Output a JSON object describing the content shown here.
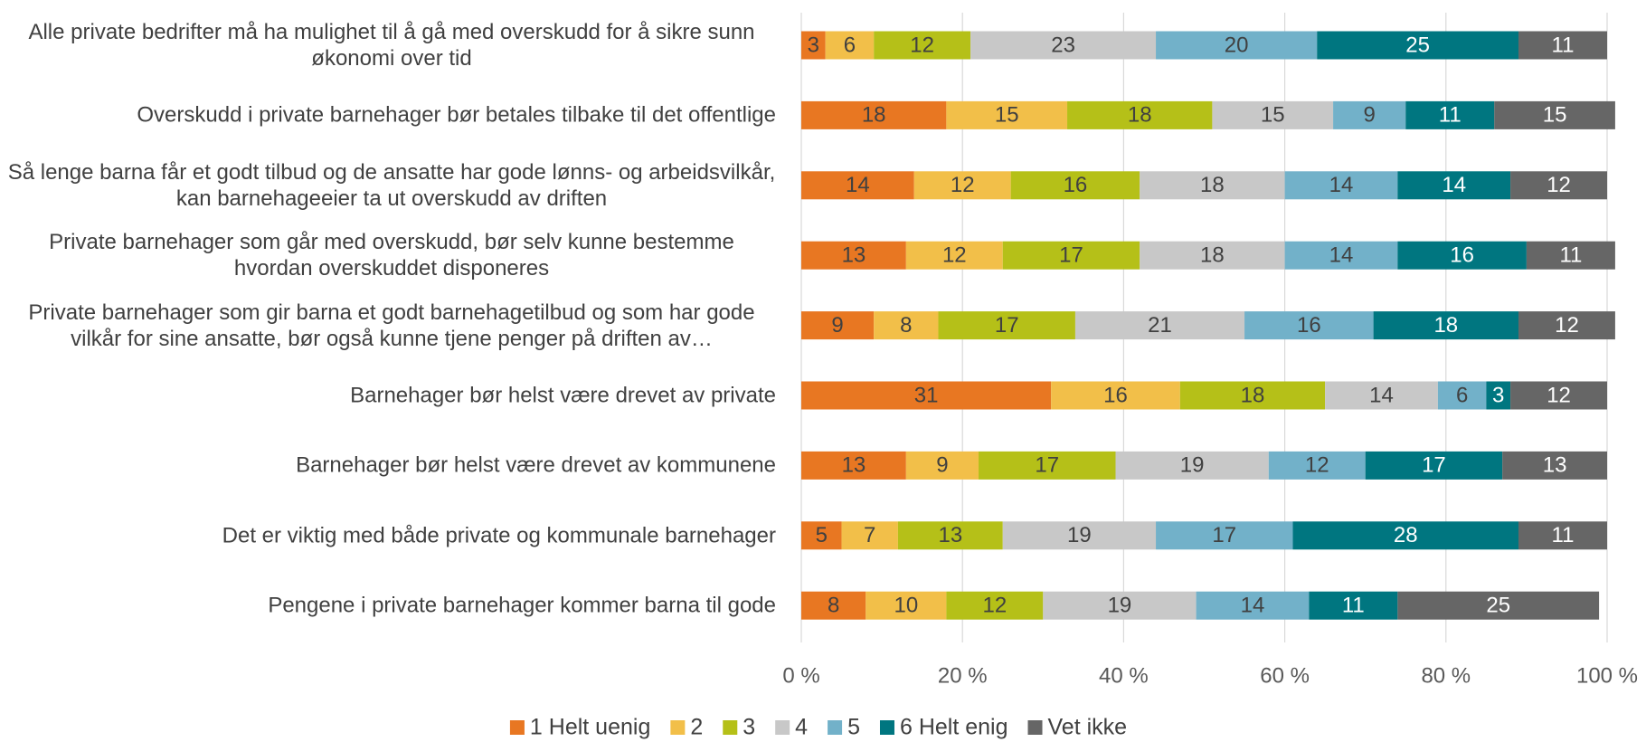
{
  "chart_data": {
    "type": "stacked_barh",
    "categories": [
      "Alle private bedrifter må ha mulighet til å gå med overskudd for å sikre sunn økonomi over tid",
      "Overskudd i private barnehager bør betales tilbake til det offentlige",
      "Så lenge barna får et godt tilbud og de ansatte har gode lønns- og arbeidsvilkår, kan barnehageeier ta ut overskudd av driften",
      "Private barnehager som går med overskudd, bør selv kunne bestemme hvordan overskuddet disponeres",
      "Private barnehager som gir barna et godt barnehagetilbud og som har gode vilkår for sine ansatte, bør også kunne tjene penger på driften av…",
      "Barnehager bør helst være drevet av private",
      "Barnehager bør helst være drevet av kommunene",
      "Det er viktig med både private og kommunale barnehager",
      "Pengene i private barnehager kommer barna til gode"
    ],
    "series": [
      {
        "name": "1 Helt uenig",
        "color": "#e87722",
        "values": [
          3,
          18,
          14,
          13,
          9,
          31,
          13,
          5,
          8
        ]
      },
      {
        "name": "2",
        "color": "#f2bf49",
        "values": [
          6,
          15,
          12,
          12,
          8,
          16,
          9,
          7,
          10
        ]
      },
      {
        "name": "3",
        "color": "#b5c018",
        "values": [
          12,
          18,
          16,
          17,
          17,
          18,
          17,
          13,
          12
        ]
      },
      {
        "name": "4",
        "color": "#c8c8c8",
        "values": [
          23,
          15,
          18,
          18,
          21,
          14,
          19,
          19,
          19
        ]
      },
      {
        "name": "5",
        "color": "#72b1c9",
        "values": [
          20,
          9,
          14,
          14,
          16,
          6,
          12,
          17,
          14
        ]
      },
      {
        "name": "6 Helt enig",
        "color": "#007680",
        "values": [
          25,
          11,
          14,
          16,
          18,
          3,
          17,
          28,
          11
        ]
      },
      {
        "name": "Vet ikke",
        "color": "#666666",
        "values": [
          11,
          15,
          12,
          11,
          12,
          12,
          13,
          11,
          25
        ]
      }
    ],
    "xlim": [
      0,
      100
    ],
    "xticks": [
      {
        "value": 0,
        "label": "0 %"
      },
      {
        "value": 20,
        "label": "20 %"
      },
      {
        "value": 40,
        "label": "40 %"
      },
      {
        "value": 60,
        "label": "60 %"
      },
      {
        "value": 80,
        "label": "80 %"
      },
      {
        "value": 100,
        "label": "100 %"
      }
    ],
    "grid": true,
    "legend": "bottom"
  }
}
